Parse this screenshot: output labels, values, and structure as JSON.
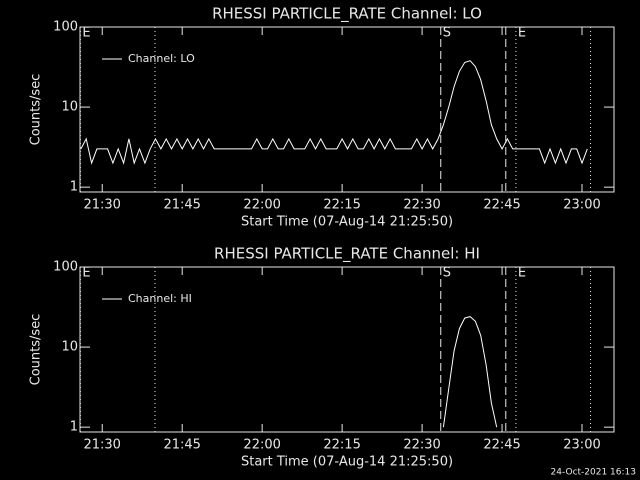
{
  "chart_data": [
    {
      "type": "line",
      "title": "RHESSI PARTICLE_RATE Channel: LO",
      "x_label": "Start Time (07-Aug-14 21:25:50)",
      "y_label": "Counts/sec",
      "log_y": true,
      "legend": "upper left",
      "xlim": [
        1285.83,
        1386
      ],
      "xticks": [
        {
          "value": 1290,
          "label": "21:30"
        },
        {
          "value": 1305,
          "label": "21:45"
        },
        {
          "value": 1320,
          "label": "22:00"
        },
        {
          "value": 1335,
          "label": "22:15"
        },
        {
          "value": 1350,
          "label": "22:30"
        },
        {
          "value": 1365,
          "label": "22:45"
        },
        {
          "value": 1380,
          "label": "23:00"
        }
      ],
      "ylim": [
        0.87,
        100
      ],
      "yticks": [
        1,
        10,
        100
      ],
      "annotations": [
        {
          "x": 1285.9,
          "style": "dotted",
          "label": "E"
        },
        {
          "x": 1299.9,
          "style": "dotted"
        },
        {
          "x": 1353.5,
          "style": "dashed",
          "label": "S"
        },
        {
          "x": 1365.7,
          "style": "dashed"
        },
        {
          "x": 1367.6,
          "style": "dotted",
          "label": "E"
        },
        {
          "x": 1381.6,
          "style": "dotted"
        }
      ],
      "series": [
        {
          "name": "Channel: LO",
          "color": "#ffffff",
          "x": [
            1286,
            1287,
            1288,
            1289,
            1290,
            1291,
            1292,
            1293,
            1294,
            1295,
            1296,
            1297,
            1298,
            1299,
            1300,
            1301,
            1302,
            1303,
            1304,
            1305,
            1306,
            1307,
            1308,
            1309,
            1310,
            1311,
            1312,
            1313,
            1314,
            1315,
            1316,
            1317,
            1318,
            1319,
            1320,
            1321,
            1322,
            1323,
            1324,
            1325,
            1326,
            1327,
            1328,
            1329,
            1330,
            1331,
            1332,
            1333,
            1334,
            1335,
            1336,
            1337,
            1338,
            1339,
            1340,
            1341,
            1342,
            1343,
            1344,
            1345,
            1346,
            1347,
            1348,
            1349,
            1350,
            1351,
            1352,
            1353,
            1354,
            1355,
            1356,
            1357,
            1358,
            1359,
            1360,
            1361,
            1362,
            1363,
            1364,
            1365,
            1366,
            1367,
            1368,
            1369,
            1370,
            1371,
            1372,
            1373,
            1374,
            1375,
            1376,
            1377,
            1378,
            1379,
            1380,
            1381
          ],
          "values": [
            3,
            4,
            2,
            3,
            3,
            3,
            2,
            3,
            2,
            4,
            2,
            3,
            2,
            3,
            4,
            3,
            4,
            3,
            4,
            3,
            4,
            3,
            4,
            3,
            4,
            3,
            3,
            3,
            3,
            3,
            3,
            3,
            3,
            4,
            3,
            3,
            4,
            3,
            3,
            4,
            3,
            3,
            3,
            4,
            3,
            4,
            3,
            3,
            3,
            4,
            3,
            4,
            3,
            3,
            4,
            3,
            4,
            3,
            4,
            3,
            3,
            3,
            3,
            4,
            3,
            4,
            3,
            4,
            6,
            10,
            18,
            28,
            36,
            38,
            32,
            22,
            12,
            6,
            4,
            3,
            4,
            3,
            3,
            3,
            3,
            3,
            3,
            2,
            3,
            2,
            3,
            2,
            3,
            3,
            2,
            3
          ]
        }
      ]
    },
    {
      "type": "line",
      "title": "RHESSI PARTICLE_RATE Channel: HI",
      "x_label": "Start Time (07-Aug-14 21:25:50)",
      "y_label": "Counts/sec",
      "log_y": true,
      "legend": "upper left",
      "xlim": [
        1285.83,
        1386
      ],
      "xticks": [
        {
          "value": 1290,
          "label": "21:30"
        },
        {
          "value": 1305,
          "label": "21:45"
        },
        {
          "value": 1320,
          "label": "22:00"
        },
        {
          "value": 1335,
          "label": "22:15"
        },
        {
          "value": 1350,
          "label": "22:30"
        },
        {
          "value": 1365,
          "label": "22:45"
        },
        {
          "value": 1380,
          "label": "23:00"
        }
      ],
      "ylim": [
        0.87,
        100
      ],
      "yticks": [
        1,
        10,
        100
      ],
      "annotations": [
        {
          "x": 1285.9,
          "style": "dotted",
          "label": "E"
        },
        {
          "x": 1299.9,
          "style": "dotted"
        },
        {
          "x": 1353.5,
          "style": "dashed",
          "label": "S"
        },
        {
          "x": 1365.7,
          "style": "dashed"
        },
        {
          "x": 1367.6,
          "style": "dotted",
          "label": "E"
        },
        {
          "x": 1381.6,
          "style": "dotted"
        }
      ],
      "series": [
        {
          "name": "Channel: HI",
          "color": "#ffffff",
          "x": [
            1354,
            1355,
            1356,
            1357,
            1358,
            1359,
            1360,
            1361,
            1362,
            1363,
            1364
          ],
          "values": [
            1,
            3,
            9,
            17,
            23,
            24,
            21,
            14,
            6,
            2,
            1
          ]
        }
      ]
    }
  ],
  "footer": "24-Oct-2021 16:13"
}
